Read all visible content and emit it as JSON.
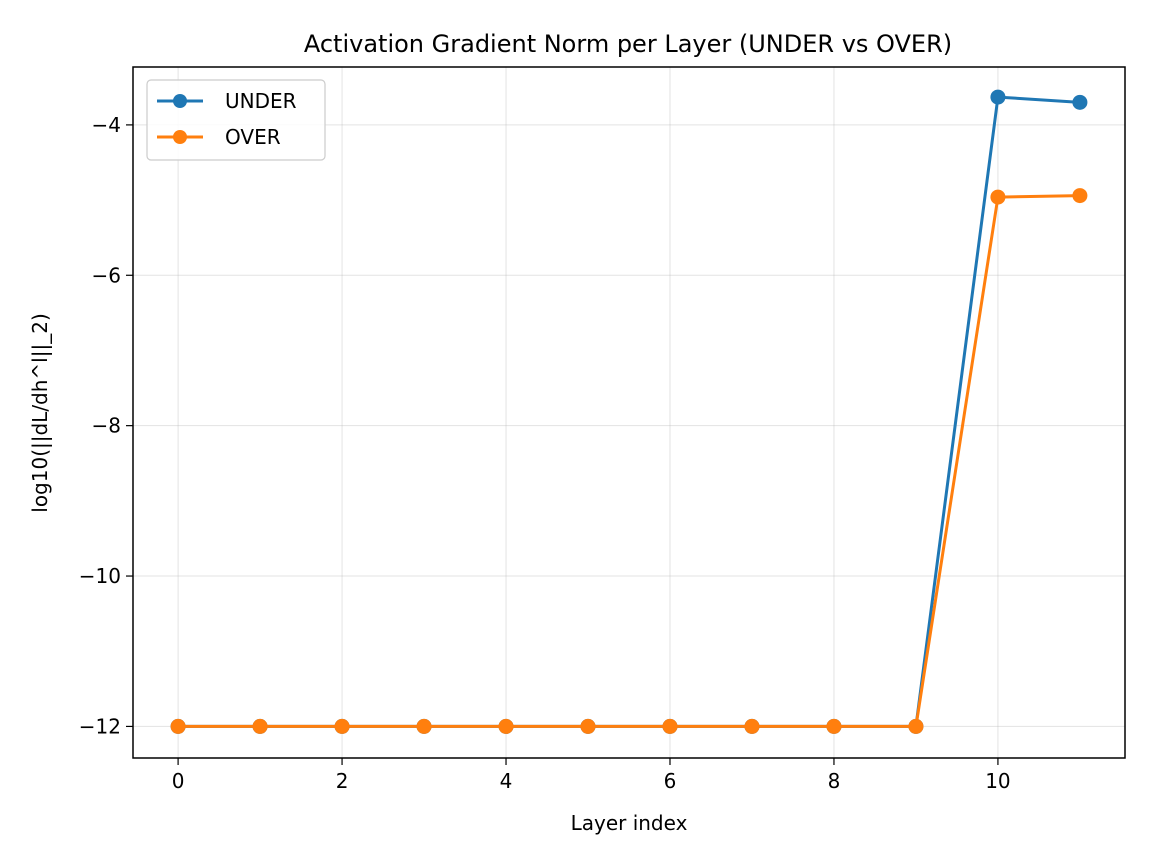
{
  "chart_data": {
    "type": "line",
    "title": "Activation Gradient Norm per Layer (UNDER vs OVER)",
    "xlabel": "Layer index",
    "ylabel": "log10(||dL/dh^l||_2)",
    "xlim": [
      -0.55,
      11.55
    ],
    "ylim": [
      -12.42,
      -3.23
    ],
    "x_ticks": [
      0,
      2,
      4,
      6,
      8,
      10
    ],
    "y_ticks": [
      -12,
      -10,
      -8,
      -6,
      -4
    ],
    "x_tick_labels": [
      "0",
      "2",
      "4",
      "6",
      "8",
      "10"
    ],
    "y_tick_labels": [
      "−12",
      "−10",
      "−8",
      "−6",
      "−4"
    ],
    "grid": true,
    "legend_position": "top-left",
    "x": [
      0,
      1,
      2,
      3,
      4,
      5,
      6,
      7,
      8,
      9,
      10,
      11
    ],
    "series": [
      {
        "name": "UNDER",
        "color": "#1f77b4",
        "marker": "circle",
        "values": [
          -12,
          -12,
          -12,
          -12,
          -12,
          -12,
          -12,
          -12,
          -12,
          -12,
          -3.63,
          -3.7
        ]
      },
      {
        "name": "OVER",
        "color": "#ff7f0e",
        "marker": "circle",
        "values": [
          -12,
          -12,
          -12,
          -12,
          -12,
          -12,
          -12,
          -12,
          -12,
          -12,
          -4.96,
          -4.94
        ]
      }
    ]
  }
}
